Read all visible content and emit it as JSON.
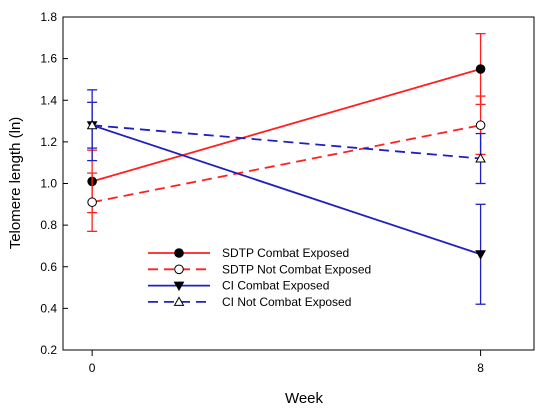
{
  "chart_data": {
    "type": "line",
    "xlabel": "Week",
    "ylabel": "Telomere length (ln)",
    "x": [
      0,
      8
    ],
    "x_ticks": [
      "0",
      "8"
    ],
    "xlim": [
      -0.6,
      9.1
    ],
    "ylim": [
      0.2,
      1.8
    ],
    "y_ticks": [
      "0.2",
      "0.4",
      "0.6",
      "0.8",
      "1.0",
      "1.2",
      "1.4",
      "1.6",
      "1.8"
    ],
    "grid": false,
    "legend_position": "lower-center",
    "series": [
      {
        "name": "SDTP Combat Exposed",
        "color": "#ff2020",
        "dash": "solid",
        "marker": "filled-circle",
        "values": [
          1.01,
          1.55
        ],
        "err_low": [
          0.86,
          1.38
        ],
        "err_high": [
          1.16,
          1.72
        ]
      },
      {
        "name": "SDTP Not Combat Exposed",
        "color": "#ff2020",
        "dash": "dashed",
        "marker": "open-circle",
        "values": [
          0.91,
          1.28
        ],
        "err_low": [
          0.77,
          1.14
        ],
        "err_high": [
          1.05,
          1.42
        ]
      },
      {
        "name": "CI Combat Exposed",
        "color": "#2020c0",
        "dash": "solid",
        "marker": "filled-triangle-down",
        "values": [
          1.28,
          0.66
        ],
        "err_low": [
          1.11,
          0.42
        ],
        "err_high": [
          1.45,
          0.9
        ]
      },
      {
        "name": "CI Not Combat Exposed",
        "color": "#2020c0",
        "dash": "dashed",
        "marker": "open-triangle-up",
        "values": [
          1.28,
          1.12
        ],
        "err_low": [
          1.17,
          1.0
        ],
        "err_high": [
          1.39,
          1.24
        ]
      }
    ]
  }
}
